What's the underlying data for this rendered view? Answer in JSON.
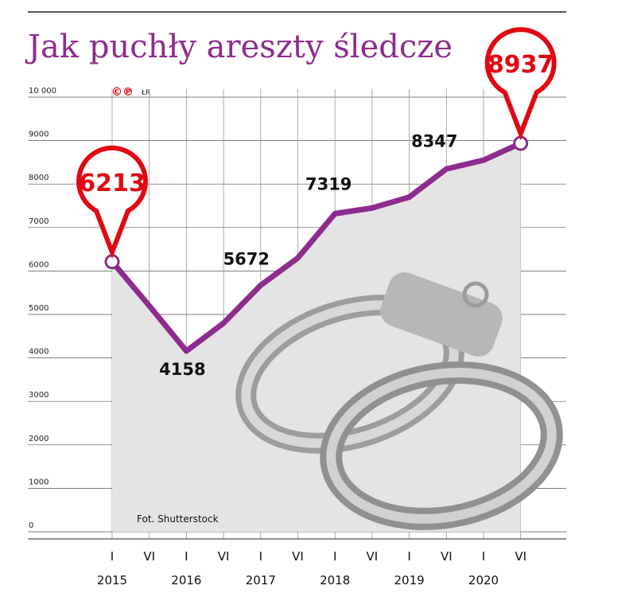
{
  "title": "Jak puchły areszty śledcze",
  "logo": "©℗",
  "author": "ŁR",
  "credit": "Fot. Shutterstock",
  "chart_data": {
    "type": "line",
    "categories": [
      "I",
      "VI",
      "I",
      "VI",
      "I",
      "VI",
      "I",
      "VI",
      "I",
      "VI",
      "I",
      "VI"
    ],
    "years": [
      "2015",
      "2016",
      "2017",
      "2018",
      "2019",
      "2020"
    ],
    "series": [
      {
        "name": "Areszty śledcze",
        "color": "#8e2c8e",
        "values": [
          6213,
          5200,
          4158,
          4800,
          5672,
          6300,
          7319,
          7450,
          7700,
          8347,
          8550,
          8937
        ]
      }
    ],
    "ylim": [
      0,
      10000
    ],
    "yticks": [
      0,
      1000,
      2000,
      3000,
      4000,
      5000,
      6000,
      7000,
      8000,
      9000,
      {
        "value": 10000,
        "label": "10 000"
      }
    ],
    "grid": true
  }
}
